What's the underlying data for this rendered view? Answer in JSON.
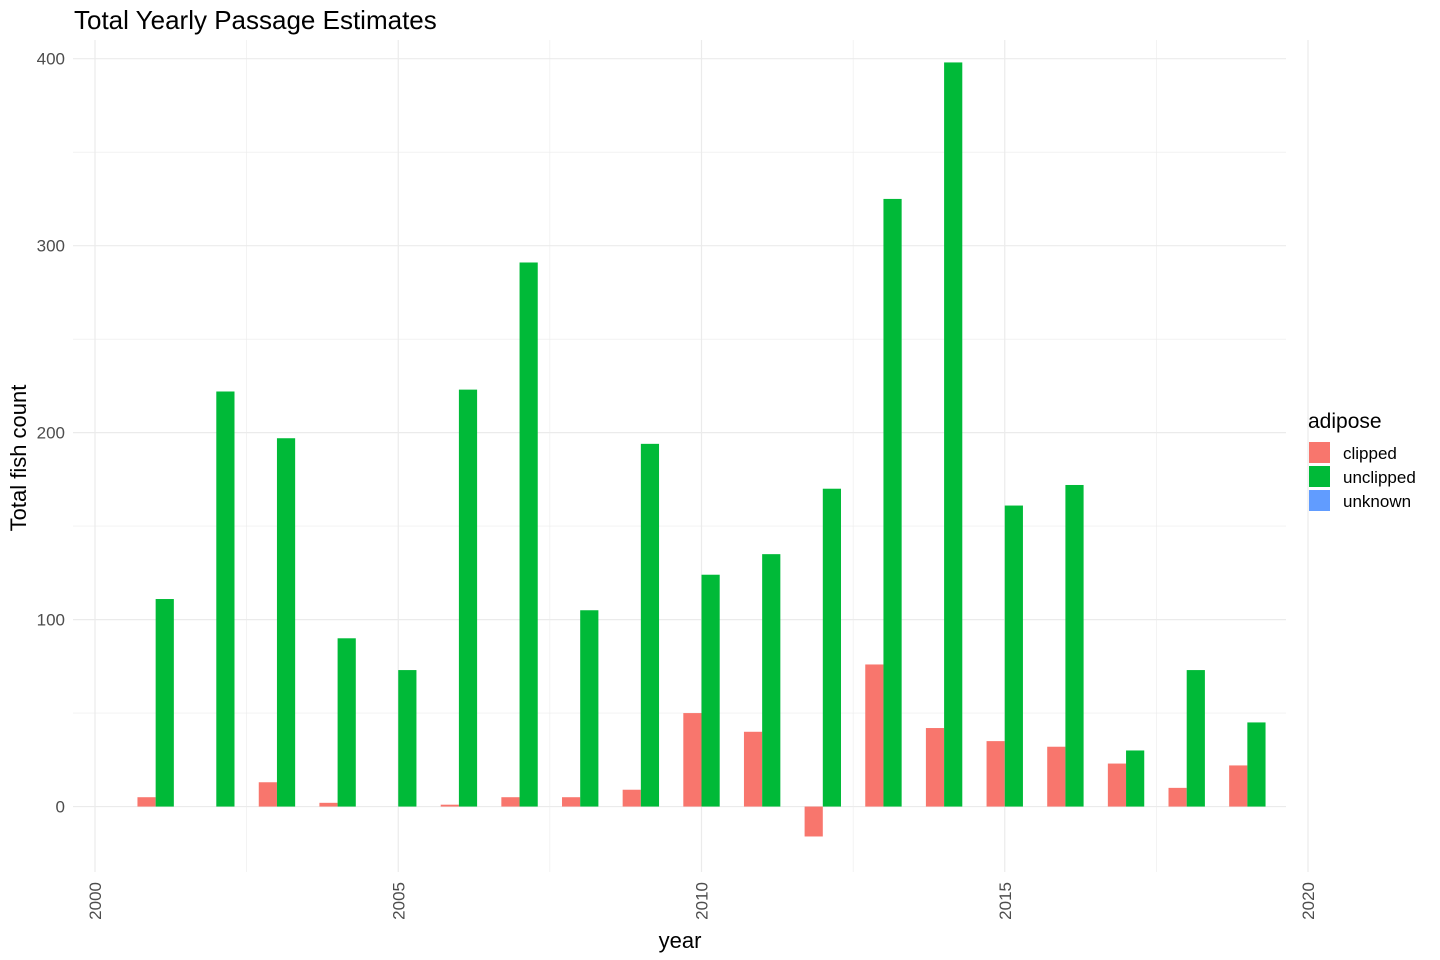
{
  "chart_data": {
    "type": "bar",
    "title": "Total Yearly Passage Estimates",
    "xlabel": "year",
    "ylabel": "Total fish count",
    "x": [
      2001,
      2002,
      2003,
      2004,
      2005,
      2006,
      2007,
      2008,
      2009,
      2010,
      2011,
      2012,
      2013,
      2014,
      2015,
      2016,
      2017,
      2018,
      2019
    ],
    "xlim": [
      2000,
      2020
    ],
    "ylim": [
      -35,
      410
    ],
    "x_ticks": [
      2000,
      2005,
      2010,
      2015,
      2020
    ],
    "y_ticks": [
      0,
      100,
      200,
      300,
      400
    ],
    "grid": true,
    "legend_position": "right",
    "legend_title": "adipose",
    "series": [
      {
        "name": "clipped",
        "color": "#F8766D",
        "values": [
          5,
          0,
          13,
          2,
          0,
          1,
          5,
          5,
          9,
          50,
          40,
          -16,
          76,
          42,
          35,
          32,
          23,
          10,
          22
        ]
      },
      {
        "name": "unclipped",
        "color": "#00BA38",
        "values": [
          111,
          222,
          197,
          90,
          73,
          223,
          291,
          105,
          194,
          124,
          135,
          170,
          325,
          398,
          161,
          172,
          30,
          73,
          45
        ]
      },
      {
        "name": "unknown",
        "color": "#619CFF",
        "values": [
          0,
          0,
          0,
          0,
          0,
          0,
          0,
          0,
          0,
          0,
          0,
          0,
          0,
          0,
          0,
          0,
          0,
          0,
          0
        ]
      }
    ]
  }
}
